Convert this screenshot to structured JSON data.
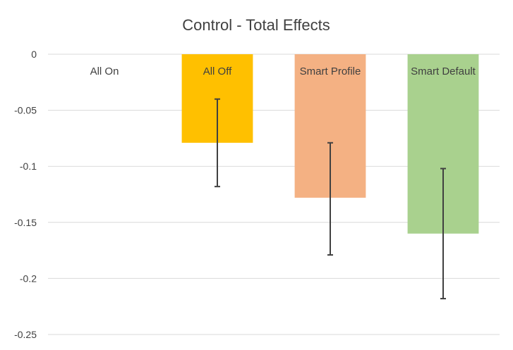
{
  "chart_data": {
    "type": "bar",
    "title": "Control - Total Effects",
    "xlabel": "",
    "ylabel": "",
    "categories": [
      "All On",
      "All Off",
      "Smart Profile",
      "Smart Default"
    ],
    "values": [
      0,
      -0.079,
      -0.128,
      -0.16
    ],
    "error_low": [
      0,
      -0.118,
      -0.179,
      -0.218
    ],
    "error_high": [
      0,
      -0.04,
      -0.079,
      -0.102
    ],
    "colors": [
      "#ffffff",
      "#ffc000",
      "#f4b183",
      "#a9d18e"
    ],
    "ylim": [
      -0.25,
      0
    ],
    "yticks": [
      "0",
      "-0.05",
      "-0.1",
      "-0.15",
      "-0.2",
      "-0.25"
    ],
    "ytick_values": [
      0,
      -0.05,
      -0.1,
      -0.15,
      -0.2,
      -0.25
    ],
    "grid": true,
    "legend": "none"
  }
}
